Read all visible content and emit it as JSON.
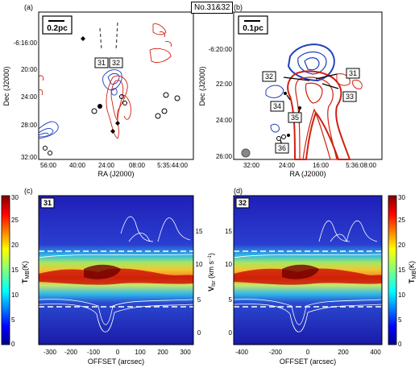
{
  "figure_title": "No.31&32",
  "panels": {
    "a": {
      "letter": "(a)",
      "scalebar": "0.2pc",
      "ylabel": "Dec (J2000)",
      "xlabel": "RA (J2000)",
      "yticks": [
        "-6:16:00",
        "20:00",
        "24:00",
        "28:00",
        "32:00"
      ],
      "xticks": [
        "56:00",
        "40:00",
        "24:00",
        "08:00",
        "5:35:44:00"
      ],
      "labels": [
        "31",
        "32"
      ]
    },
    "b": {
      "letter": "(b)",
      "scalebar": "0.1pc",
      "ylabel": "Dec (J2000)",
      "xlabel": "RA (J2000)",
      "yticks": [
        "-6:20:00",
        "22:00",
        "24:00",
        "26:00"
      ],
      "xticks": [
        "32:00",
        "24:00",
        "16:00",
        "5:36:08:00"
      ],
      "labels": [
        "31",
        "32",
        "33",
        "34",
        "35",
        "36"
      ]
    },
    "c": {
      "letter": "(c)",
      "id": "31",
      "xlabel": "OFFSET (arcsec)",
      "xticks": [
        "-300",
        "-200",
        "-100",
        "0",
        "100",
        "200",
        "300"
      ],
      "yticks_right": [
        "0",
        "5",
        "10",
        "15"
      ]
    },
    "d": {
      "letter": "(d)",
      "id": "32",
      "xlabel": "OFFSET (arcsec)",
      "xticks": [
        "-400",
        "-200",
        "0",
        "200",
        "400"
      ]
    }
  },
  "velocity_axis": {
    "label": "V",
    "sub": "lsr",
    "unit": " (km s",
    "sup": "−1",
    "close": ")"
  },
  "colorbar": {
    "label": "T",
    "sub": "MB",
    "unit": "(K)",
    "ticks": [
      "0",
      "5",
      "10",
      "15",
      "20",
      "25",
      "30"
    ]
  },
  "colors": {
    "blue_contour": "#1f3fbf",
    "red_contour": "#d02010",
    "dashed": "#ffffff"
  }
}
